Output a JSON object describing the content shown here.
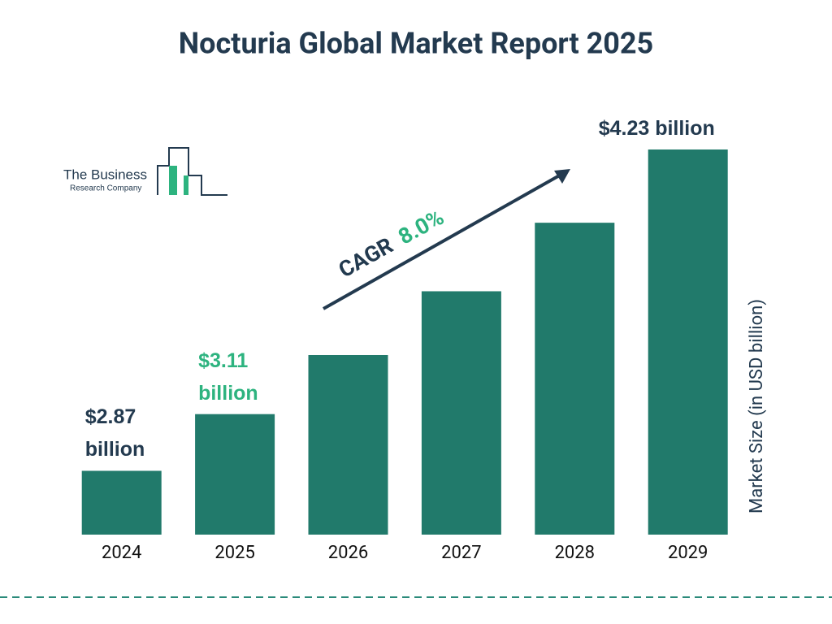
{
  "chart_data": {
    "type": "bar",
    "title": "Nocturia Global Market Report 2025",
    "categories": [
      "2024",
      "2025",
      "2026",
      "2027",
      "2028",
      "2029"
    ],
    "values": [
      2.87,
      3.11,
      3.36,
      3.63,
      3.92,
      4.23
    ],
    "value_labels": [
      "$2.87 billion",
      "$3.11 billion",
      null,
      null,
      null,
      "$4.23 billion"
    ],
    "value_label_colors": [
      "#233a4f",
      "#2db37f",
      "#233a4f",
      "#233a4f",
      "#233a4f",
      "#233a4f"
    ],
    "color": "#217a6b",
    "ylim": [
      2.6,
      4.23
    ],
    "y_label": "Market Size (in USD billion)",
    "cagr": {
      "label": "CAGR",
      "value": "8.0%"
    }
  },
  "logo": {
    "line1": "The Business",
    "line2": "Research Company"
  }
}
